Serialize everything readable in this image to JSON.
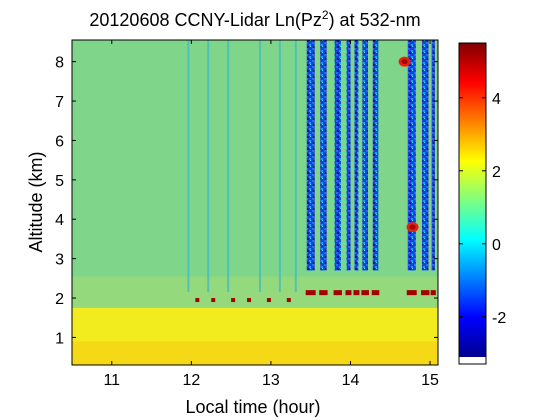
{
  "chart_data": {
    "type": "heatmap",
    "title": {
      "main": "20120608 CCNY-Lidar Ln(Pz",
      "sup": "2",
      "tail": ") at 532-nm"
    },
    "xlabel": "Local time (hour)",
    "ylabel": "Altitude (km)",
    "xlim": [
      10.5,
      15.1
    ],
    "ylim": [
      0.3,
      8.55
    ],
    "xticks": [
      11,
      12,
      13,
      14,
      15
    ],
    "yticks": [
      1,
      2,
      3,
      4,
      5,
      6,
      7,
      8
    ],
    "grid": false,
    "colormap": "jet",
    "colorbar": {
      "location": "right",
      "clim": [
        -3.1,
        5.5
      ],
      "ticks": [
        -2,
        0,
        2,
        4
      ]
    },
    "colors": {
      "boundary_layer": "#f2ec1e",
      "free_troposphere": "#7fd68a",
      "clear_sky_noise": "#1e3fd8",
      "cloud": "#a40000"
    },
    "features": {
      "boundary_layer_top_km": 1.75,
      "clear_sky_intervals_hours": [
        [
          13.45,
          13.55
        ],
        [
          13.62,
          13.7
        ],
        [
          13.8,
          13.88
        ],
        [
          13.95,
          14.0
        ],
        [
          14.05,
          14.1
        ],
        [
          14.15,
          14.22
        ],
        [
          14.28,
          14.35
        ],
        [
          14.72,
          14.82
        ],
        [
          14.9,
          14.98
        ],
        [
          15.02,
          15.06
        ]
      ],
      "cloud_base_layer_km": [
        2.0,
        2.7
      ],
      "elevated_cloud_patches": [
        {
          "time_hour": 14.78,
          "altitude_km": 3.8
        },
        {
          "time_hour": 14.68,
          "altitude_km": 8.0
        }
      ]
    }
  }
}
